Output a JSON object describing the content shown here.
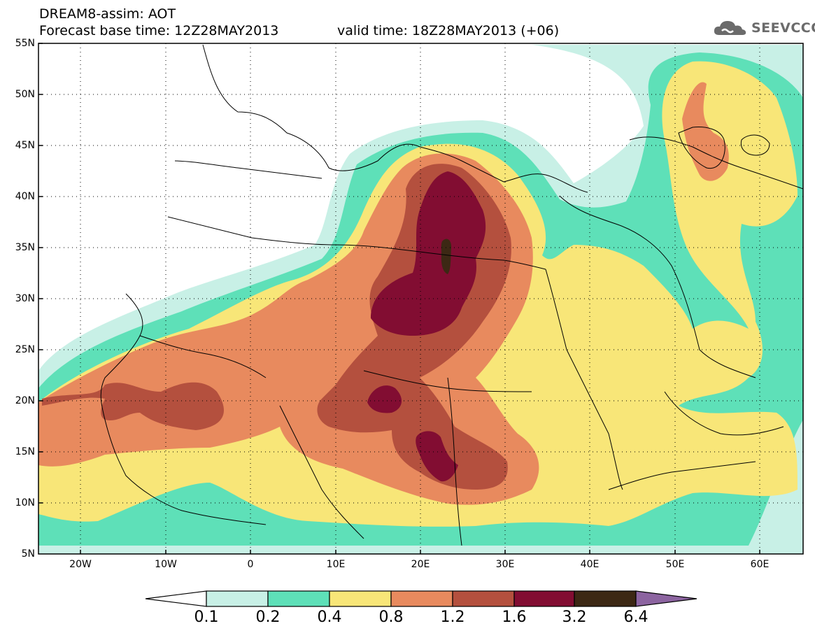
{
  "header": {
    "line1": "DREAM8-assim: AOT",
    "line2": "Forecast base time: 12Z28MAY2013",
    "valid_time": "valid time: 18Z28MAY2013 (+06)"
  },
  "logo": {
    "icon": "cloud-logo-icon",
    "text": "SEEVCCC"
  },
  "axes": {
    "y_labels": [
      "55N",
      "50N",
      "45N",
      "40N",
      "35N",
      "30N",
      "25N",
      "20N",
      "15N",
      "10N",
      "5N"
    ],
    "x_labels": [
      "20W",
      "10W",
      "0",
      "10E",
      "20E",
      "30E",
      "40E",
      "50E",
      "60E"
    ],
    "lat_range": [
      5,
      55
    ],
    "lon_range": [
      -25,
      65
    ],
    "grid": "dotted"
  },
  "colorbar": {
    "labels": [
      "0.1",
      "0.2",
      "0.4",
      "0.8",
      "1.2",
      "1.6",
      "3.2",
      "6.4"
    ],
    "colors": [
      "#ffffff",
      "#c8f0e6",
      "#5ee0b8",
      "#f8e678",
      "#e88a5e",
      "#b4503e",
      "#820d32",
      "#3c2814",
      "#8c64a0"
    ]
  },
  "field_colors": {
    "below": "#ffffff",
    "c01": "#c8f0e6",
    "c02": "#5ee0b8",
    "c04": "#f8e678",
    "c08": "#e88a5e",
    "c12": "#b4503e",
    "c16": "#820d32",
    "c32": "#3c2814"
  }
}
